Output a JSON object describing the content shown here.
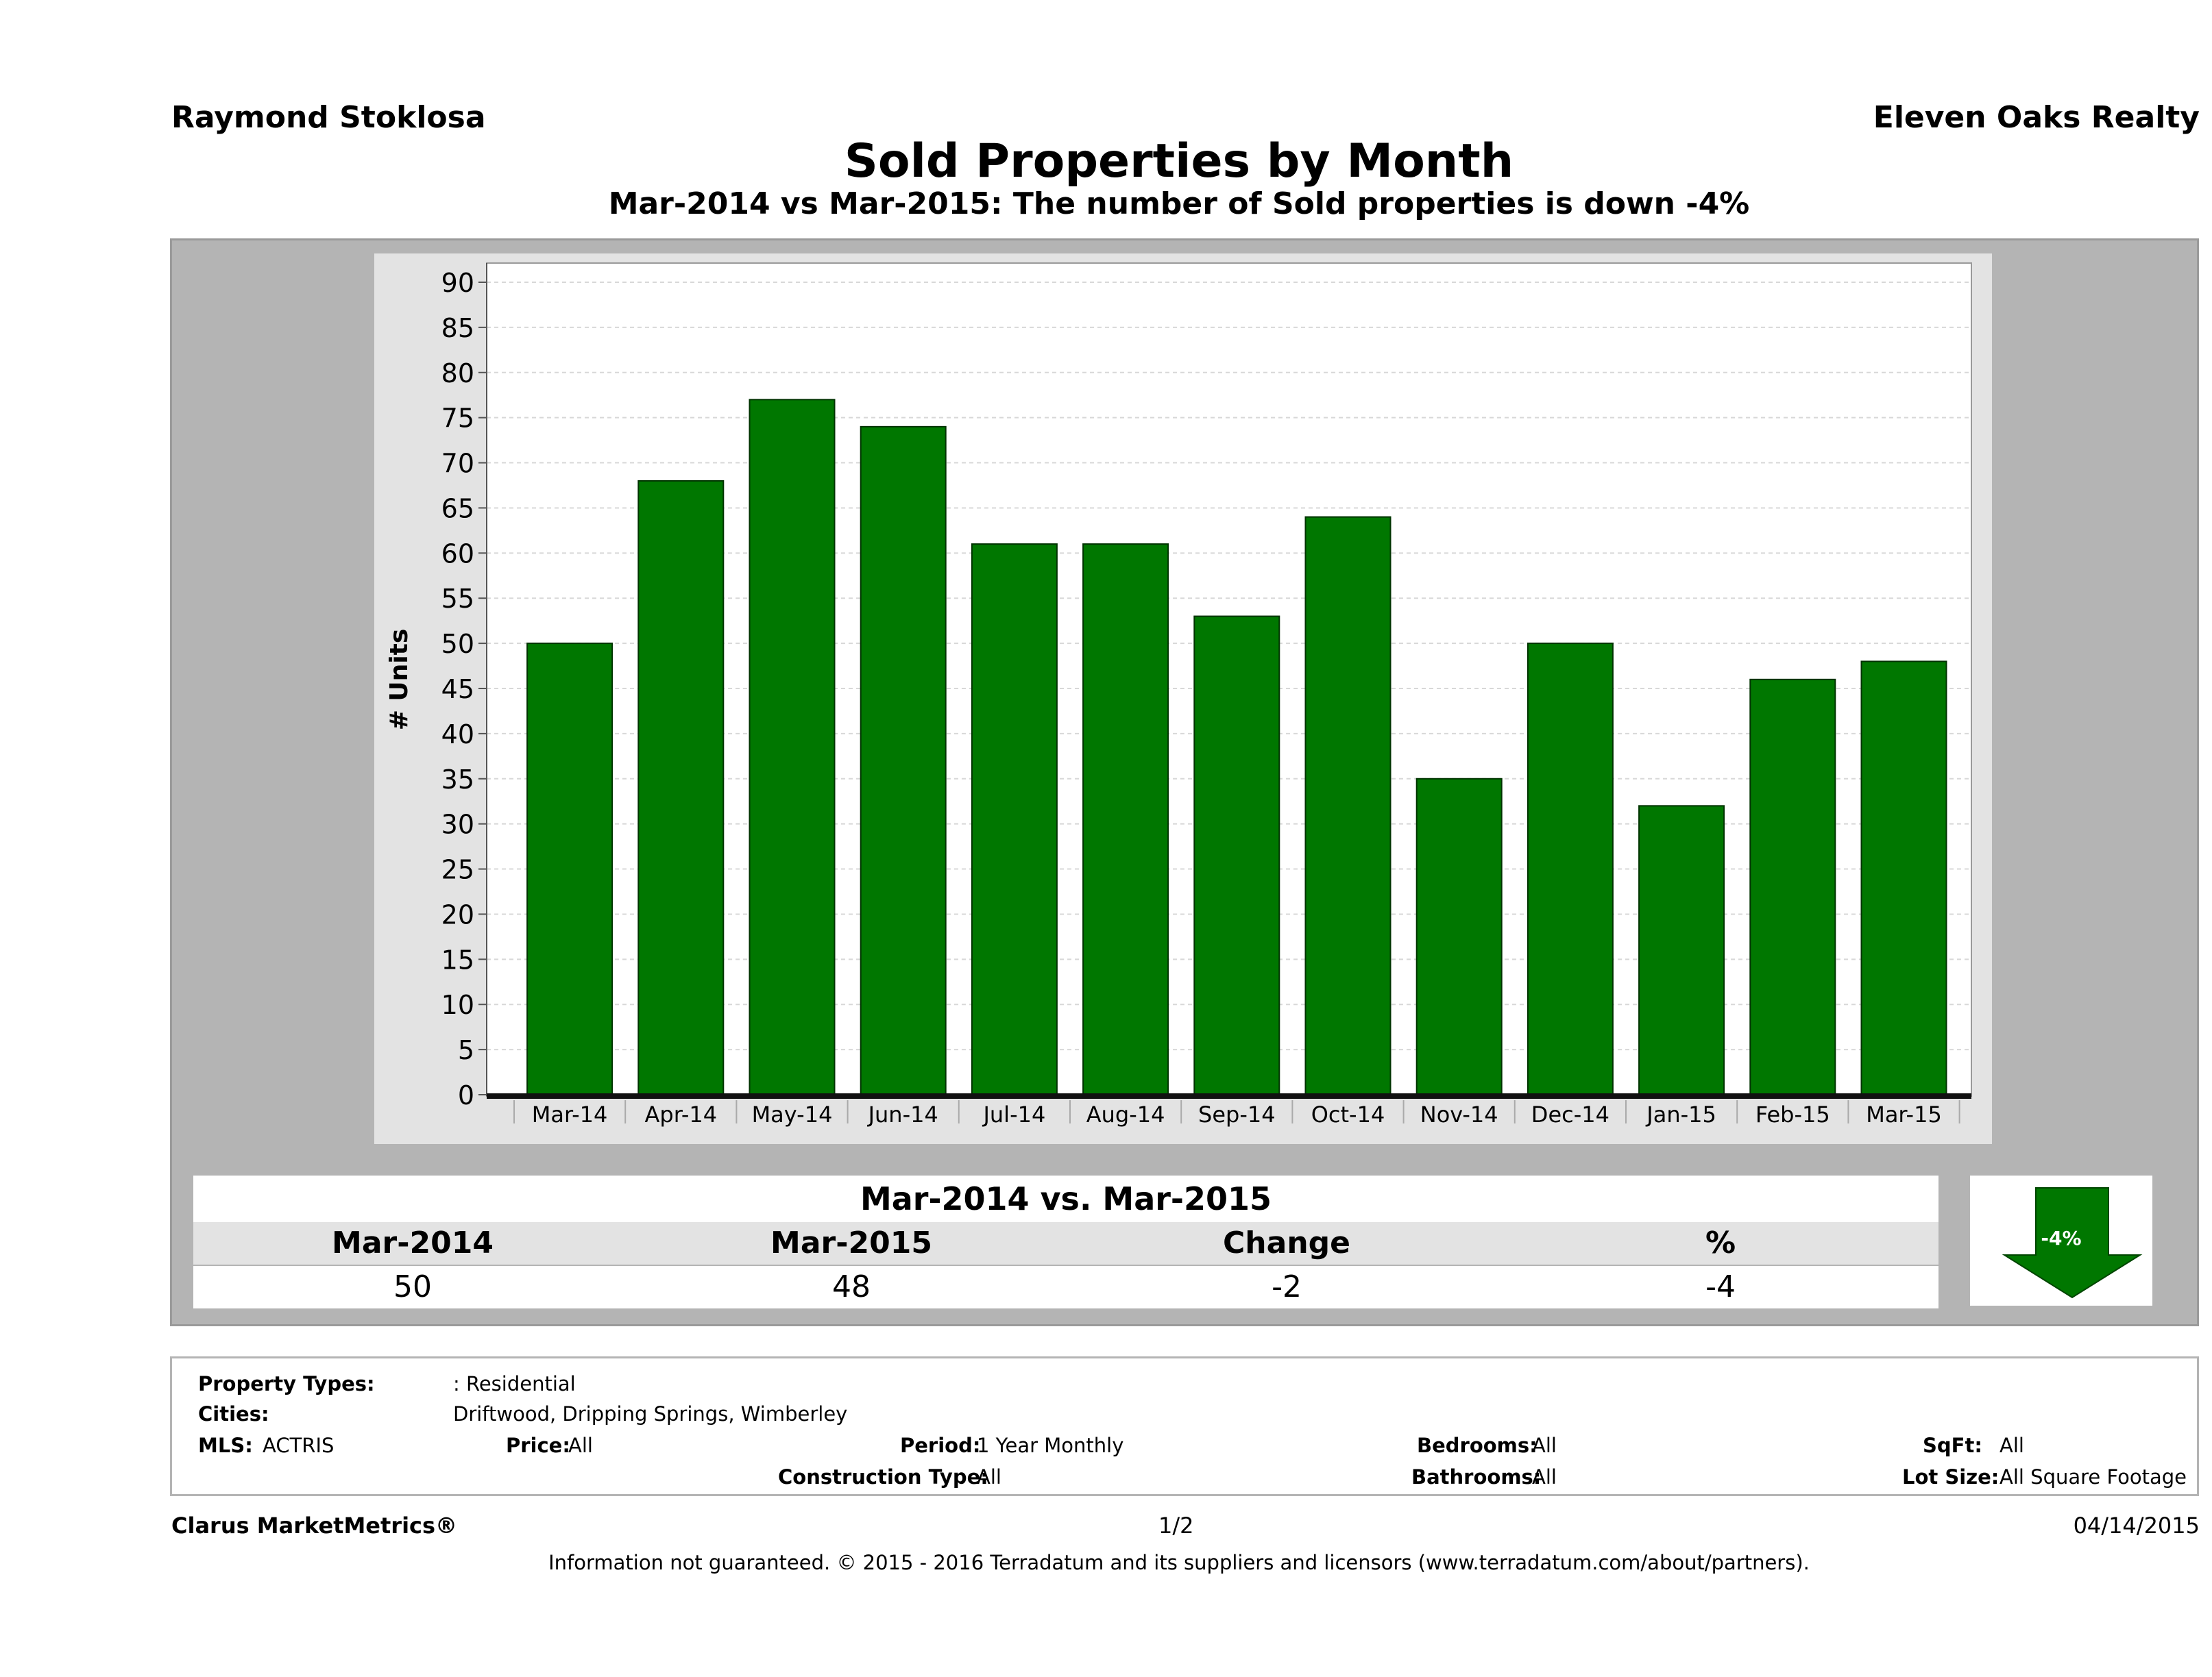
{
  "header": {
    "agent": "Raymond Stoklosa",
    "company": "Eleven Oaks Realty",
    "title": "Sold Properties by Month",
    "subtitle": "Mar-2014 vs Mar-2015: The number of Sold  properties is down -4%"
  },
  "colors": {
    "bar": "#007700",
    "bar_border": "#003300",
    "panel": "#e3e3e3",
    "frame": "#b4b4b4"
  },
  "chart_data": {
    "type": "bar",
    "categories": [
      "Mar-14",
      "Apr-14",
      "May-14",
      "Jun-14",
      "Jul-14",
      "Aug-14",
      "Sep-14",
      "Oct-14",
      "Nov-14",
      "Dec-14",
      "Jan-15",
      "Feb-15",
      "Mar-15"
    ],
    "values": [
      50,
      68,
      77,
      74,
      61,
      61,
      53,
      64,
      35,
      50,
      32,
      46,
      48
    ],
    "title": "",
    "xlabel": "",
    "ylabel": "# Units",
    "ylim": [
      0,
      90
    ],
    "yticks": [
      0,
      5,
      10,
      15,
      20,
      25,
      30,
      35,
      40,
      45,
      50,
      55,
      60,
      65,
      70,
      75,
      80,
      85,
      90
    ],
    "grid": true,
    "legend": "none"
  },
  "summary": {
    "heading": "Mar-2014 vs. Mar-2015",
    "labels": [
      "Mar-2014",
      "Mar-2015",
      "Change",
      "%"
    ],
    "values": [
      "50",
      "48",
      "-2",
      "-4"
    ],
    "badge": "-4%",
    "badge_icon": "down-arrow-icon"
  },
  "criteria": {
    "property_types_label": "Property Types:",
    "property_types": ": Residential",
    "cities_label": "Cities:",
    "cities": "Driftwood, Dripping Springs, Wimberley",
    "mls_label": "MLS:",
    "mls": "ACTRIS",
    "price_label": "Price:",
    "price": "All",
    "period_label": "Period:",
    "period": "1 Year Monthly",
    "bedrooms_label": "Bedrooms:",
    "bedrooms": "All",
    "sqft_label": "SqFt:",
    "sqft": "All",
    "construction_label": "Construction Type:",
    "construction": "All",
    "bathrooms_label": "Bathrooms:",
    "bathrooms": "All",
    "lot_size_label": "Lot Size:",
    "lot_size": "All Square Footage"
  },
  "footer": {
    "brand": "Clarus MarketMetrics®",
    "page": "1/2",
    "date": "04/14/2015",
    "disclaimer": "Information not guaranteed. © 2015 - 2016 Terradatum and its suppliers and licensors (www.terradatum.com/about/partners)."
  }
}
